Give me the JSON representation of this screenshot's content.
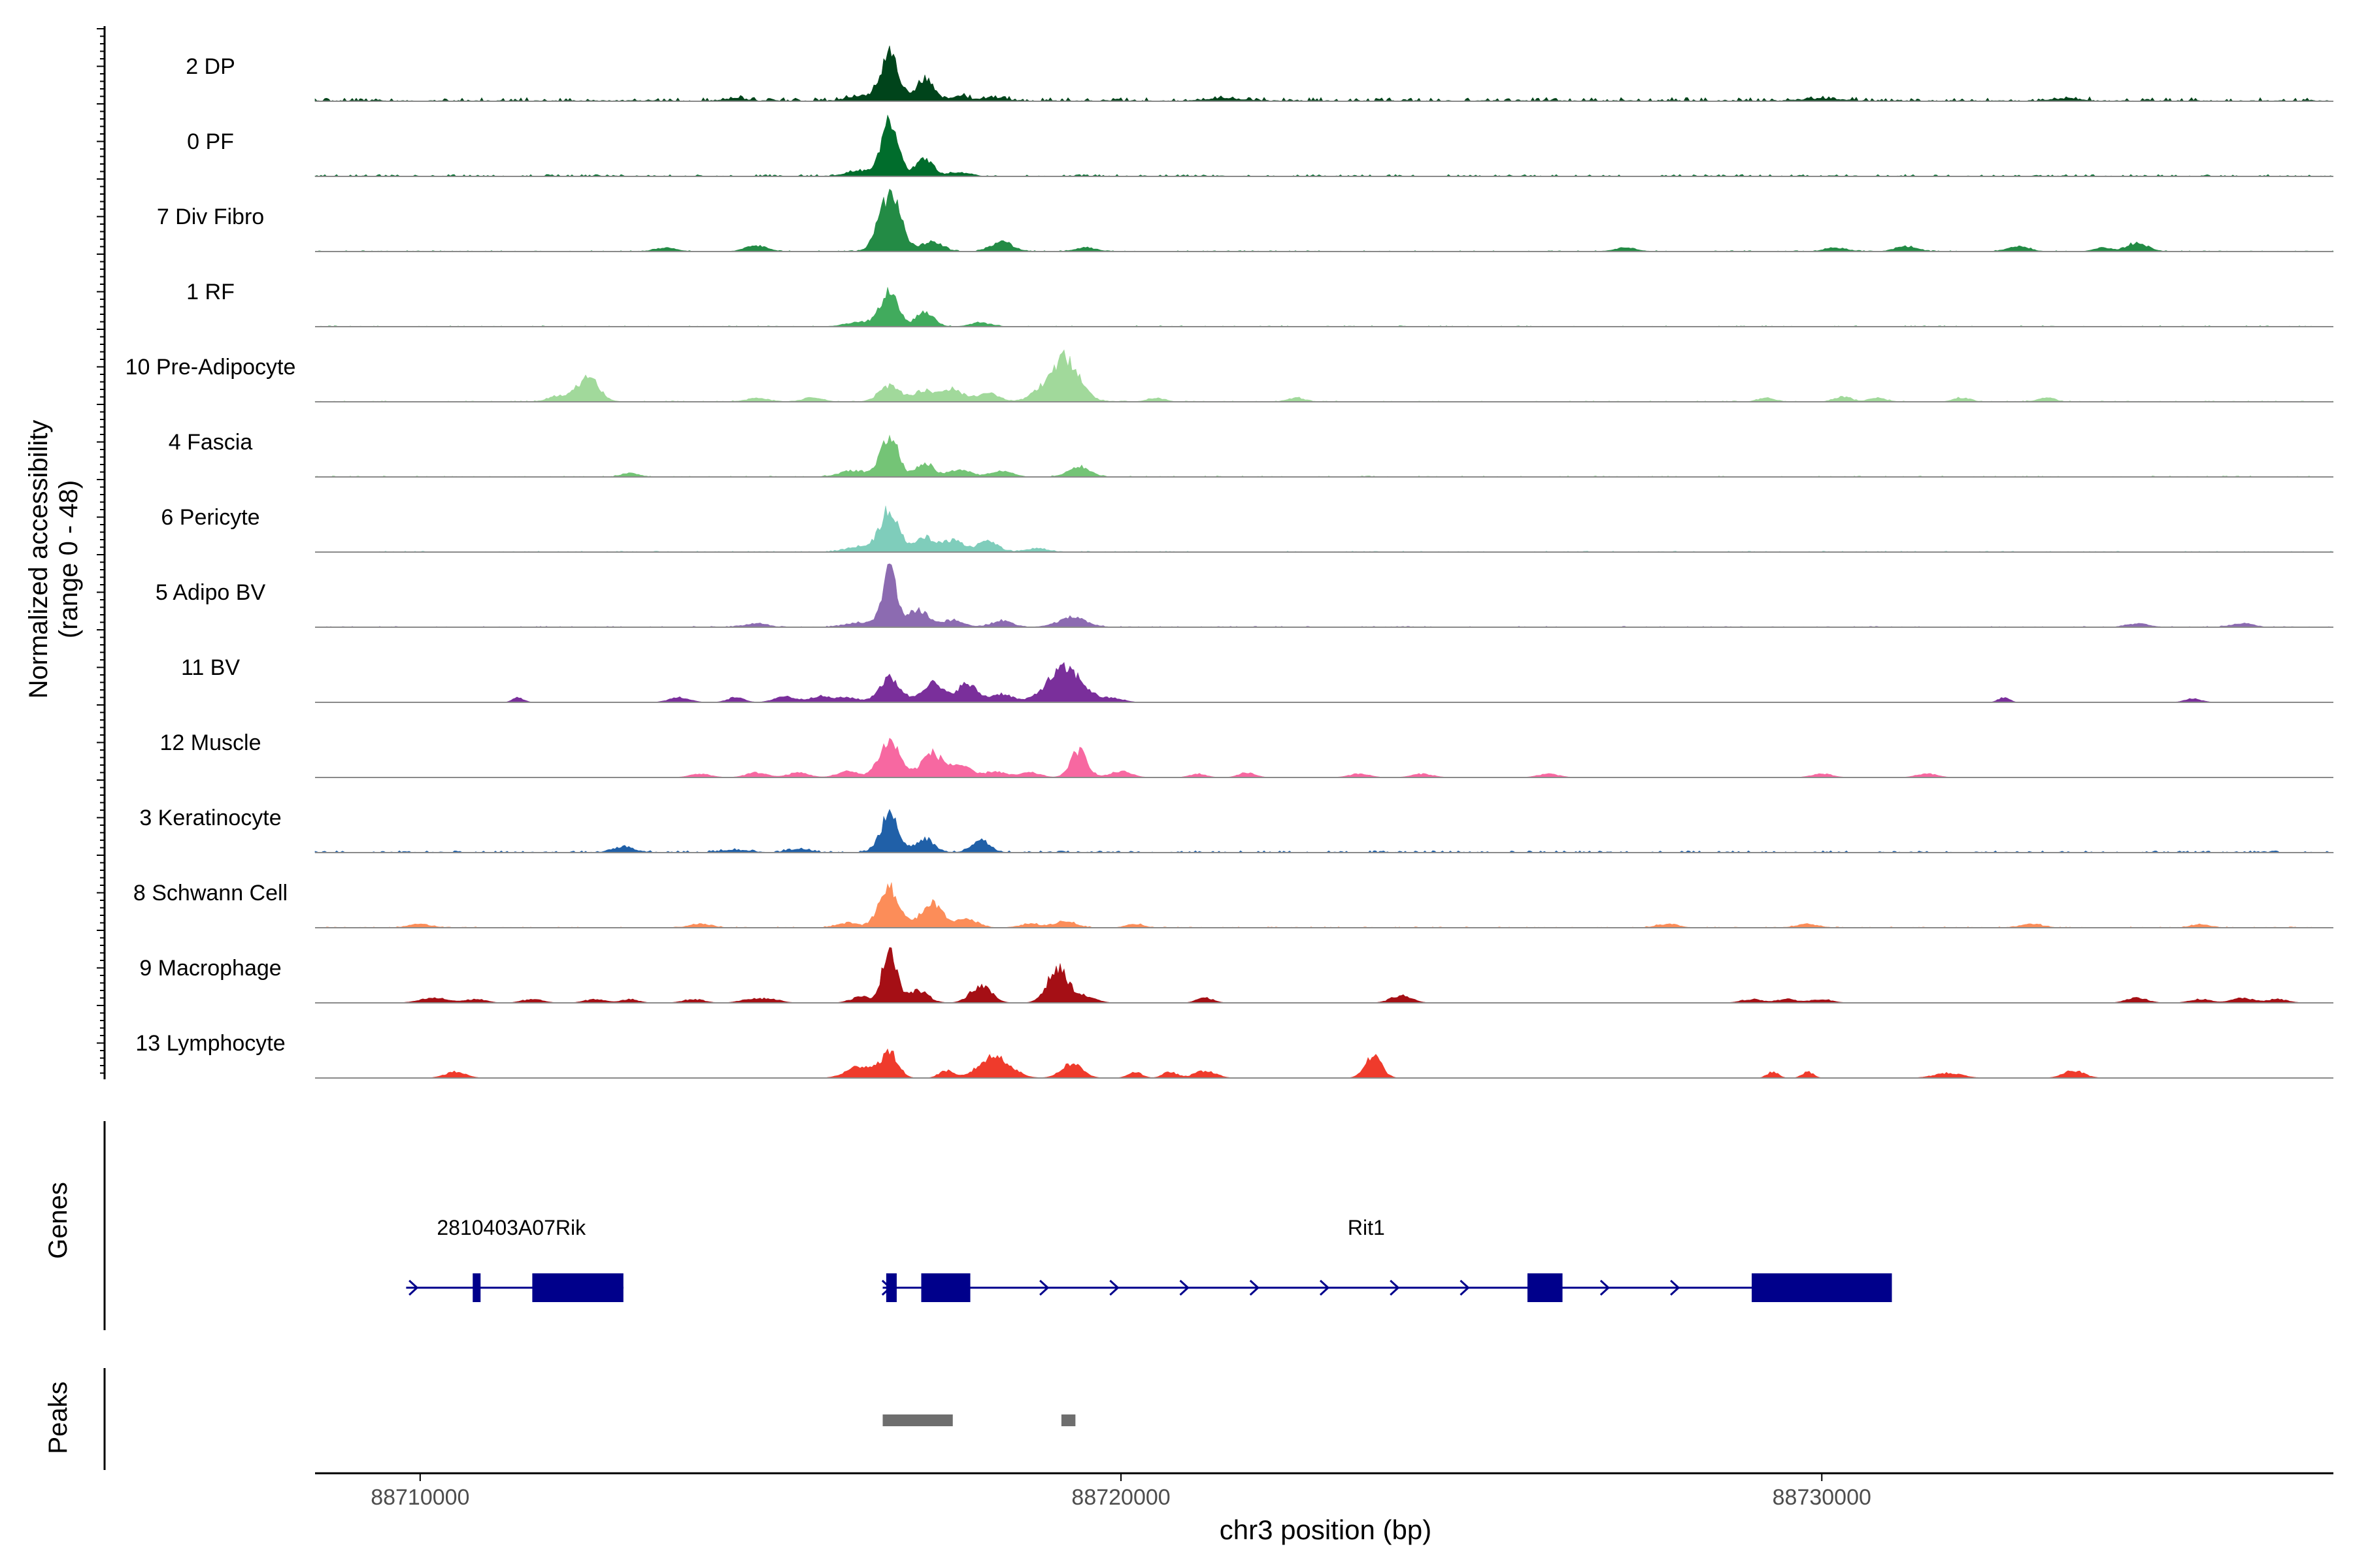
{
  "chart_data": {
    "type": "area",
    "title": "",
    "chromosome": "chr3",
    "xlabel": "chr3 position (bp)",
    "ylabel_line1": "Normalized accessibility",
    "ylabel_line2": "(range 0 - 48)",
    "ylim": [
      0,
      48
    ],
    "xlim": [
      88708500,
      88737300
    ],
    "xticks": [
      {
        "value": 88710000,
        "label": "88710000"
      },
      {
        "value": 88720000,
        "label": "88720000"
      },
      {
        "value": 88730000,
        "label": "88730000"
      }
    ],
    "baseline_levels": {
      "none": 0,
      "faint": 0.5,
      "low": 1,
      "medium": 2,
      "high": 3
    },
    "tracks": [
      {
        "name": "2 DP",
        "color": "#00441b",
        "baseline": "medium",
        "peaks": [
          [
            88716700,
            37,
            120
          ],
          [
            88717200,
            18,
            120
          ],
          [
            88716300,
            4,
            200
          ],
          [
            88717700,
            4,
            150
          ],
          [
            88718200,
            3,
            150
          ],
          [
            88714500,
            2,
            150
          ],
          [
            88721500,
            2,
            250
          ],
          [
            88730000,
            2,
            250
          ],
          [
            88733500,
            2,
            200
          ]
        ]
      },
      {
        "name": "0 PF",
        "color": "#006d2c",
        "baseline": "low",
        "peaks": [
          [
            88716700,
            44,
            120
          ],
          [
            88717200,
            15,
            120
          ],
          [
            88716300,
            4,
            200
          ],
          [
            88717700,
            3,
            150
          ]
        ]
      },
      {
        "name": "7 Div Fibro",
        "color": "#238b45",
        "baseline": "faint",
        "peaks": [
          [
            88716700,
            48,
            150
          ],
          [
            88717300,
            8,
            150
          ],
          [
            88718300,
            8,
            150
          ],
          [
            88714800,
            5,
            150
          ],
          [
            88727200,
            3,
            150
          ],
          [
            88730200,
            3,
            150
          ],
          [
            88731200,
            4,
            150
          ],
          [
            88732800,
            4,
            150
          ],
          [
            88734000,
            3,
            120
          ],
          [
            88734500,
            7,
            150
          ],
          [
            88713500,
            3,
            150
          ],
          [
            88719500,
            3,
            150
          ]
        ]
      },
      {
        "name": "1 RF",
        "color": "#41ab5d",
        "baseline": "faint",
        "peaks": [
          [
            88716700,
            30,
            120
          ],
          [
            88717200,
            13,
            120
          ],
          [
            88716300,
            4,
            200
          ],
          [
            88718000,
            3,
            150
          ]
        ]
      },
      {
        "name": "10 Pre-Adipocyte",
        "color": "#a1d99b",
        "baseline": "faint",
        "peaks": [
          [
            88712400,
            20,
            150
          ],
          [
            88712000,
            5,
            150
          ],
          [
            88716700,
            13,
            150
          ],
          [
            88717200,
            9,
            150
          ],
          [
            88717600,
            10,
            150
          ],
          [
            88718100,
            7,
            150
          ],
          [
            88719200,
            37,
            200
          ],
          [
            88718800,
            5,
            150
          ],
          [
            88714800,
            3,
            150
          ],
          [
            88715600,
            3,
            150
          ],
          [
            88720500,
            3,
            120
          ],
          [
            88722500,
            3,
            120
          ],
          [
            88729200,
            3,
            120
          ],
          [
            88730300,
            4,
            120
          ],
          [
            88730800,
            3,
            120
          ],
          [
            88732000,
            3,
            120
          ],
          [
            88733200,
            3,
            120
          ]
        ]
      },
      {
        "name": "4 Fascia",
        "color": "#74c476",
        "baseline": "faint",
        "peaks": [
          [
            88716700,
            35,
            120
          ],
          [
            88717200,
            12,
            120
          ],
          [
            88717700,
            6,
            150
          ],
          [
            88718300,
            5,
            150
          ],
          [
            88719400,
            9,
            150
          ],
          [
            88716200,
            5,
            200
          ],
          [
            88713000,
            3,
            120
          ]
        ]
      },
      {
        "name": "6 Pericyte",
        "color": "#7fcdbb",
        "baseline": "faint",
        "peaks": [
          [
            88716700,
            35,
            130
          ],
          [
            88717200,
            12,
            130
          ],
          [
            88717600,
            10,
            150
          ],
          [
            88718100,
            8,
            150
          ],
          [
            88716300,
            5,
            200
          ],
          [
            88718800,
            3,
            150
          ]
        ]
      },
      {
        "name": "5 Adipo BV",
        "color": "#8c6bb1",
        "baseline": "faint",
        "peaks": [
          [
            88716700,
            48,
            100
          ],
          [
            88717100,
            14,
            150
          ],
          [
            88717600,
            6,
            150
          ],
          [
            88718300,
            5,
            150
          ],
          [
            88719300,
            8,
            200
          ],
          [
            88716300,
            4,
            200
          ],
          [
            88714800,
            3,
            150
          ],
          [
            88734500,
            3,
            150
          ],
          [
            88736000,
            3,
            150
          ]
        ]
      },
      {
        "name": "11 BV",
        "color": "#7a2f9b",
        "baseline": "none",
        "peaks": [
          [
            88716700,
            20,
            150
          ],
          [
            88717300,
            16,
            150
          ],
          [
            88717800,
            15,
            150
          ],
          [
            88718300,
            7,
            150
          ],
          [
            88719200,
            28,
            250
          ],
          [
            88711400,
            4,
            80
          ],
          [
            88713700,
            4,
            150
          ],
          [
            88714500,
            4,
            120
          ],
          [
            88715200,
            5,
            150
          ],
          [
            88715700,
            5,
            150
          ],
          [
            88716100,
            4,
            150
          ],
          [
            88719900,
            3,
            150
          ],
          [
            88732600,
            4,
            80
          ],
          [
            88735300,
            3,
            120
          ]
        ]
      },
      {
        "name": "12 Muscle",
        "color": "#f768a1",
        "baseline": "none",
        "peaks": [
          [
            88716700,
            30,
            150
          ],
          [
            88717300,
            20,
            150
          ],
          [
            88717700,
            10,
            150
          ],
          [
            88719400,
            22,
            120
          ],
          [
            88718200,
            5,
            150
          ],
          [
            88718700,
            4,
            150
          ],
          [
            88714000,
            3,
            150
          ],
          [
            88714800,
            4,
            150
          ],
          [
            88715400,
            4,
            150
          ],
          [
            88716100,
            5,
            150
          ],
          [
            88720000,
            5,
            150
          ],
          [
            88721100,
            3,
            120
          ],
          [
            88721800,
            4,
            120
          ],
          [
            88723400,
            3,
            150
          ],
          [
            88724300,
            3,
            150
          ],
          [
            88726100,
            3,
            150
          ],
          [
            88730000,
            3,
            150
          ],
          [
            88731500,
            3,
            150
          ]
        ]
      },
      {
        "name": "3 Keratinocyte",
        "color": "#2060a8",
        "baseline": "low",
        "peaks": [
          [
            88716700,
            30,
            130
          ],
          [
            88717200,
            12,
            120
          ],
          [
            88718000,
            10,
            130
          ],
          [
            88712900,
            5,
            150
          ],
          [
            88715400,
            3,
            150
          ],
          [
            88714500,
            2,
            200
          ]
        ]
      },
      {
        "name": "8 Schwann Cell",
        "color": "#fc8d59",
        "baseline": "faint",
        "peaks": [
          [
            88716700,
            32,
            150
          ],
          [
            88717300,
            20,
            150
          ],
          [
            88717800,
            7,
            150
          ],
          [
            88719200,
            5,
            150
          ],
          [
            88710000,
            3,
            150
          ],
          [
            88714000,
            3,
            150
          ],
          [
            88716100,
            4,
            150
          ],
          [
            88718700,
            3,
            150
          ],
          [
            88720200,
            3,
            120
          ],
          [
            88727800,
            3,
            150
          ],
          [
            88729800,
            3,
            150
          ],
          [
            88733000,
            3,
            150
          ],
          [
            88735400,
            3,
            120
          ]
        ]
      },
      {
        "name": "9 Macrophage",
        "color": "#a50f15",
        "baseline": "none",
        "peaks": [
          [
            88716700,
            46,
            100
          ],
          [
            88717100,
            10,
            150
          ],
          [
            88718000,
            14,
            150
          ],
          [
            88719100,
            28,
            150
          ],
          [
            88716300,
            5,
            150
          ],
          [
            88719500,
            5,
            150
          ],
          [
            88710200,
            4,
            200
          ],
          [
            88710800,
            3,
            150
          ],
          [
            88711600,
            3,
            150
          ],
          [
            88712500,
            3,
            150
          ],
          [
            88713000,
            3,
            120
          ],
          [
            88713900,
            3,
            150
          ],
          [
            88714700,
            3,
            150
          ],
          [
            88715000,
            3,
            150
          ],
          [
            88721200,
            4,
            120
          ],
          [
            88724000,
            6,
            150
          ],
          [
            88729000,
            3,
            150
          ],
          [
            88729500,
            3,
            150
          ],
          [
            88730000,
            3,
            150
          ],
          [
            88734500,
            4,
            150
          ],
          [
            88735400,
            3,
            150
          ],
          [
            88736000,
            4,
            150
          ],
          [
            88736500,
            3,
            150
          ]
        ]
      },
      {
        "name": "13 Lymphocyte",
        "color": "#ef3b2c",
        "baseline": "none",
        "peaks": [
          [
            88716300,
            10,
            200
          ],
          [
            88716700,
            20,
            120
          ],
          [
            88717500,
            6,
            100
          ],
          [
            88718200,
            18,
            220
          ],
          [
            88719300,
            12,
            150
          ],
          [
            88721200,
            6,
            150
          ],
          [
            88723600,
            18,
            120
          ],
          [
            88710500,
            5,
            150
          ],
          [
            88720200,
            5,
            100
          ],
          [
            88720700,
            5,
            100
          ],
          [
            88729300,
            5,
            80
          ],
          [
            88729800,
            5,
            80
          ],
          [
            88731800,
            4,
            200
          ],
          [
            88733600,
            6,
            150
          ]
        ]
      }
    ],
    "genes_label": "Genes",
    "genes": [
      {
        "name": "2810403A07Rik",
        "label_pos": 88711300,
        "start": 88709800,
        "end": 88712900,
        "exons": [
          [
            88710750,
            88710850
          ],
          [
            88711600,
            88712900
          ]
        ],
        "chevrons": [
          88709900
        ]
      },
      {
        "name": "Rit1",
        "label_pos": 88723500,
        "start": 88716600,
        "end": 88731000,
        "exons": [
          [
            88716650,
            88716800
          ],
          [
            88717150,
            88717850
          ],
          [
            88725800,
            88726300
          ],
          [
            88729000,
            88731000
          ]
        ],
        "chevrons": [
          88716650,
          88718900,
          88719900,
          88720900,
          88721900,
          88722900,
          88723900,
          88724900,
          88726900,
          88727900
        ]
      }
    ],
    "gene_color": "#00008b",
    "peaks_label": "Peaks",
    "peak_regions": [
      [
        88716600,
        88717600
      ],
      [
        88719150,
        88719350
      ]
    ],
    "peak_color": "#6e6e6e"
  }
}
